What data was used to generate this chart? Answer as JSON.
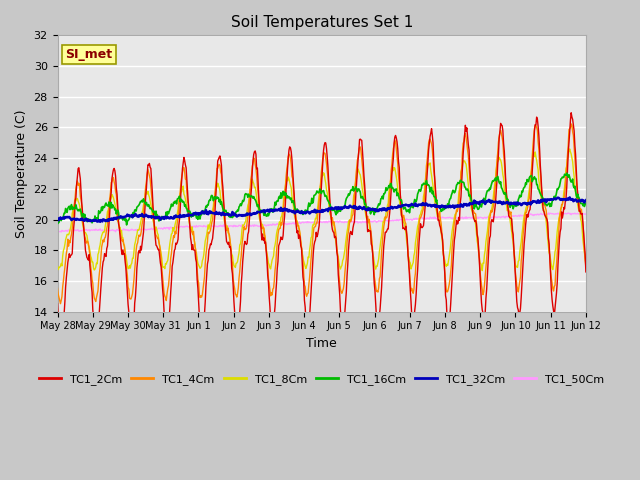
{
  "title": "Soil Temperatures Set 1",
  "xlabel": "Time",
  "ylabel": "Soil Temperature (C)",
  "ylim": [
    14,
    32
  ],
  "yticks": [
    14,
    16,
    18,
    20,
    22,
    24,
    26,
    28,
    30,
    32
  ],
  "x_labels": [
    "May 28",
    "May 29",
    "May 30",
    "May 31",
    "Jun 1",
    "Jun 2",
    "Jun 3",
    "Jun 4",
    "Jun 5",
    "Jun 6",
    "Jun 7",
    "Jun 8",
    "Jun 9",
    "Jun 10",
    "Jun 11",
    "Jun 12"
  ],
  "annotation_text": "SI_met",
  "annotation_color": "#8B0000",
  "annotation_bg": "#FFFF99",
  "annotation_border": "#999900",
  "series_colors": {
    "TC1_2Cm": "#DD0000",
    "TC1_4Cm": "#FF8800",
    "TC1_8Cm": "#DDDD00",
    "TC1_16Cm": "#00BB00",
    "TC1_32Cm": "#0000BB",
    "TC1_50Cm": "#FF99FF"
  },
  "fig_bg": "#C8C8C8",
  "plot_bg": "#E8E8E8",
  "grid_color": "#FFFFFF",
  "spine_color": "#AAAAAA",
  "title_fontsize": 11,
  "axis_label_fontsize": 9,
  "tick_fontsize": 8,
  "legend_fontsize": 8
}
